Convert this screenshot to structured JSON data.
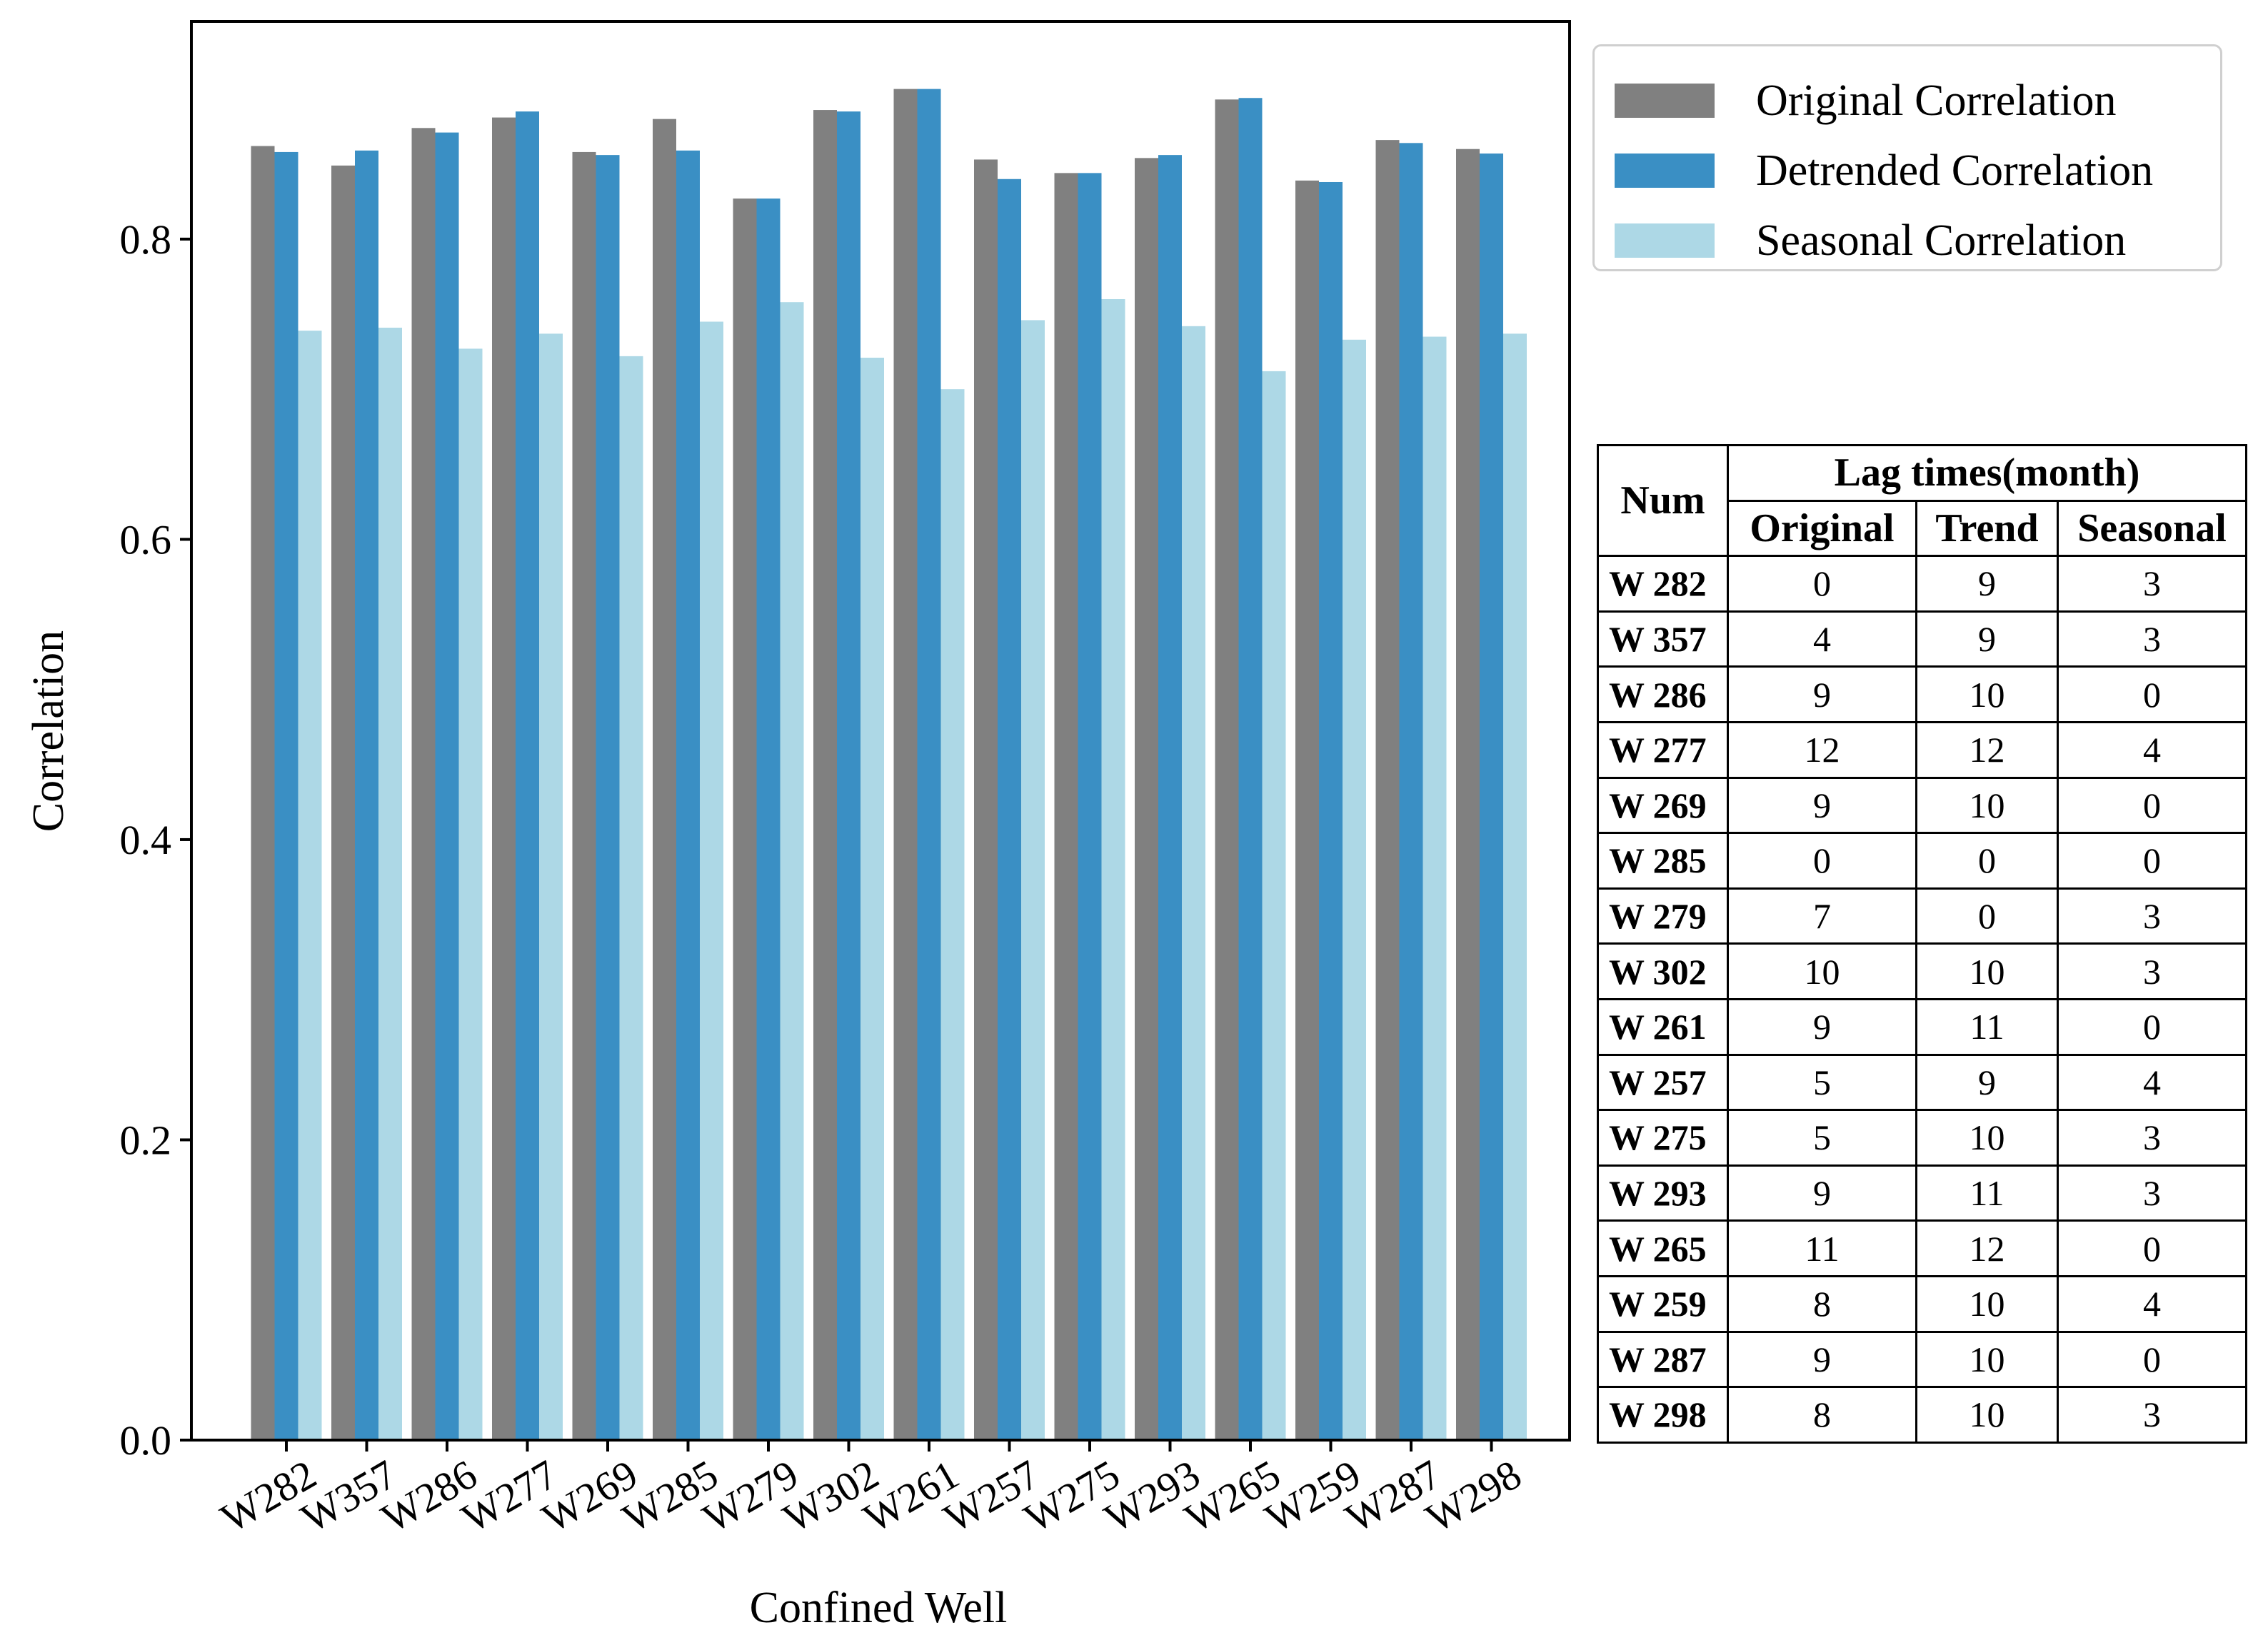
{
  "chart_data": {
    "type": "bar",
    "xlabel": "Confined Well",
    "ylabel": "Correlation",
    "ylim": [
      0,
      0.945
    ],
    "yticks": [
      "0.0",
      "0.2",
      "0.4",
      "0.6",
      "0.8"
    ],
    "categories": [
      "W282",
      "W357",
      "W286",
      "W277",
      "W269",
      "W285",
      "W279",
      "W302",
      "W261",
      "W257",
      "W275",
      "W293",
      "W265",
      "W259",
      "W287",
      "W298"
    ],
    "series": [
      {
        "name": "Original Correlation",
        "color": "#808080",
        "values": [
          0.862,
          0.849,
          0.874,
          0.881,
          0.858,
          0.88,
          0.827,
          0.886,
          0.9,
          0.853,
          0.844,
          0.854,
          0.893,
          0.839,
          0.866,
          0.86
        ]
      },
      {
        "name": "Detrended Correlation",
        "color": "#3a8fc4",
        "values": [
          0.858,
          0.859,
          0.871,
          0.885,
          0.856,
          0.859,
          0.827,
          0.885,
          0.9,
          0.84,
          0.844,
          0.856,
          0.894,
          0.838,
          0.864,
          0.857
        ]
      },
      {
        "name": "Seasonal Correlation",
        "color": "#add8e6",
        "values": [
          0.739,
          0.741,
          0.727,
          0.737,
          0.722,
          0.745,
          0.758,
          0.721,
          0.7,
          0.746,
          0.76,
          0.742,
          0.712,
          0.733,
          0.735,
          0.737
        ]
      }
    ],
    "legend_position": "top-right",
    "grid": false
  },
  "table": {
    "header_num": "Num",
    "header_group": "Lag times(month)",
    "columns": [
      "Original",
      "Trend",
      "Seasonal"
    ],
    "rows": [
      {
        "well": "W 282",
        "values": [
          "0",
          "9",
          "3"
        ]
      },
      {
        "well": "W 357",
        "values": [
          "4",
          "9",
          "3"
        ]
      },
      {
        "well": "W 286",
        "values": [
          "9",
          "10",
          "0"
        ]
      },
      {
        "well": "W 277",
        "values": [
          "12",
          "12",
          "4"
        ]
      },
      {
        "well": "W 269",
        "values": [
          "9",
          "10",
          "0"
        ]
      },
      {
        "well": "W 285",
        "values": [
          "0",
          "0",
          "0"
        ]
      },
      {
        "well": "W 279",
        "values": [
          "7",
          "0",
          "3"
        ]
      },
      {
        "well": "W 302",
        "values": [
          "10",
          "10",
          "3"
        ]
      },
      {
        "well": "W 261",
        "values": [
          "9",
          "11",
          "0"
        ]
      },
      {
        "well": "W 257",
        "values": [
          "5",
          "9",
          "4"
        ]
      },
      {
        "well": "W 275",
        "values": [
          "5",
          "10",
          "3"
        ]
      },
      {
        "well": "W 293",
        "values": [
          "9",
          "11",
          "3"
        ]
      },
      {
        "well": "W 265",
        "values": [
          "11",
          "12",
          "0"
        ]
      },
      {
        "well": "W 259",
        "values": [
          "8",
          "10",
          "4"
        ]
      },
      {
        "well": "W 287",
        "values": [
          "9",
          "10",
          "0"
        ]
      },
      {
        "well": "W 298",
        "values": [
          "8",
          "10",
          "3"
        ]
      }
    ]
  }
}
